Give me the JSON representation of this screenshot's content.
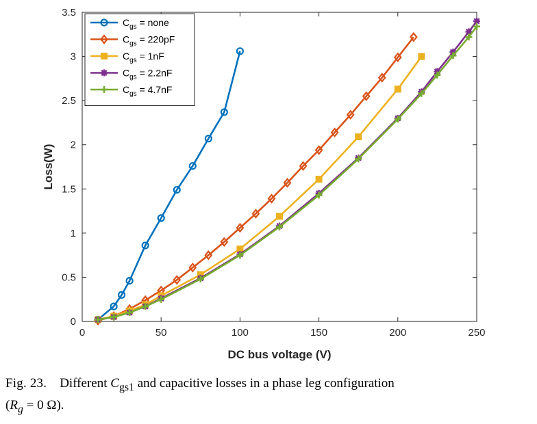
{
  "chart_data": {
    "type": "line",
    "xlabel": "DC bus voltage (V)",
    "ylabel": "Loss(W)",
    "xlim": [
      0,
      250
    ],
    "ylim": [
      0,
      3.5
    ],
    "xticks": [
      0,
      50,
      100,
      150,
      200,
      250
    ],
    "yticks": [
      0,
      0.5,
      1,
      1.5,
      2,
      2.5,
      3,
      3.5
    ],
    "grid": false,
    "legend_position": "top-left",
    "series": [
      {
        "name_main": "C",
        "name_sub": "gs",
        "name_rest": " = none",
        "color": "#0072BD",
        "marker": "circle",
        "x": [
          10,
          20,
          25,
          30,
          40,
          50,
          60,
          70,
          80,
          90,
          100
        ],
        "y": [
          0.02,
          0.17,
          0.3,
          0.46,
          0.86,
          1.17,
          1.49,
          1.76,
          2.07,
          2.37,
          3.06
        ]
      },
      {
        "name_main": "C",
        "name_sub": "gs",
        "name_rest": " = 220pF",
        "color": "#D95319",
        "marker": "diamond",
        "x": [
          10,
          20,
          30,
          40,
          50,
          60,
          70,
          80,
          90,
          100,
          110,
          120,
          130,
          140,
          150,
          160,
          170,
          180,
          190,
          200,
          210
        ],
        "y": [
          0.01,
          0.06,
          0.14,
          0.24,
          0.35,
          0.47,
          0.61,
          0.75,
          0.9,
          1.06,
          1.22,
          1.39,
          1.57,
          1.76,
          1.94,
          2.14,
          2.34,
          2.55,
          2.76,
          2.99,
          3.22
        ]
      },
      {
        "name_main": "C",
        "name_sub": "gs",
        "name_rest": " = 1nF",
        "color": "#EDB120",
        "marker": "square",
        "x": [
          10,
          20,
          30,
          40,
          50,
          75,
          100,
          125,
          150,
          175,
          200,
          215
        ],
        "y": [
          0.02,
          0.06,
          0.12,
          0.19,
          0.29,
          0.53,
          0.82,
          1.19,
          1.61,
          2.09,
          2.63,
          3.0
        ]
      },
      {
        "name_main": "C",
        "name_sub": "gs",
        "name_rest": " = 2.2nF",
        "color": "#7E2F8E",
        "marker": "star",
        "x": [
          10,
          20,
          30,
          40,
          50,
          75,
          100,
          125,
          150,
          175,
          200,
          215,
          225,
          235,
          245,
          250
        ],
        "y": [
          0.02,
          0.05,
          0.1,
          0.17,
          0.26,
          0.49,
          0.76,
          1.08,
          1.45,
          1.85,
          2.3,
          2.6,
          2.83,
          3.05,
          3.28,
          3.4
        ]
      },
      {
        "name_main": "C",
        "name_sub": "gs",
        "name_rest": " = 4.7nF",
        "color": "#77AC30",
        "marker": "plus",
        "x": [
          10,
          20,
          30,
          40,
          50,
          75,
          100,
          125,
          150,
          175,
          200,
          215,
          225,
          235,
          245,
          250
        ],
        "y": [
          0.02,
          0.05,
          0.1,
          0.17,
          0.25,
          0.48,
          0.75,
          1.07,
          1.43,
          1.84,
          2.29,
          2.58,
          2.79,
          3.01,
          3.22,
          3.34
        ]
      }
    ]
  },
  "caption": {
    "prefix": "Fig. 23.",
    "text1": "Different ",
    "c_sym": "C",
    "c_sub": "gs1",
    "text2": " and capacitive losses in a phase leg configuration",
    "text3": "(",
    "r_sym": "R",
    "r_sub": "g",
    "text4": " = 0 Ω)."
  }
}
